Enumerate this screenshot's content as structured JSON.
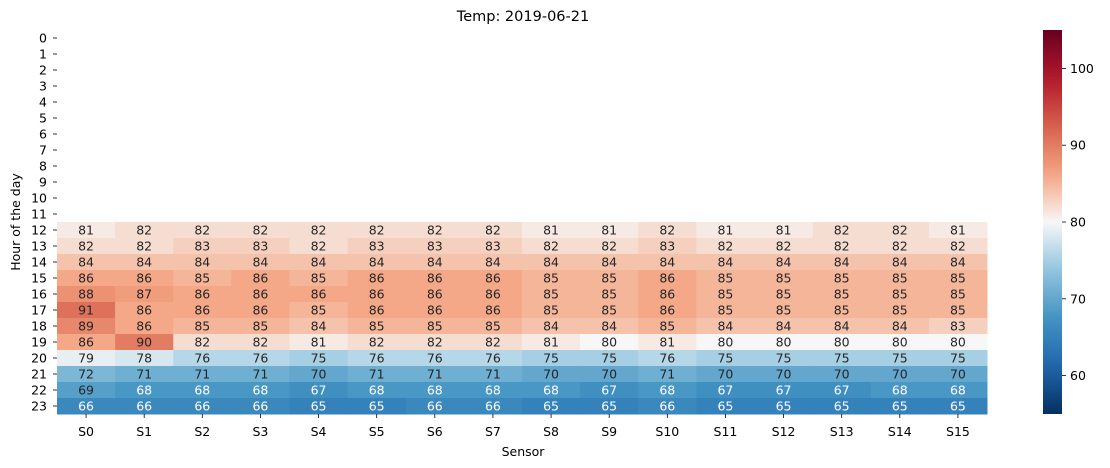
{
  "chart_data": {
    "type": "heatmap",
    "title": "Temp: 2019-06-21",
    "xlabel": "Sensor",
    "ylabel": "Hour of the day",
    "x_categories": [
      "S0",
      "S1",
      "S2",
      "S3",
      "S4",
      "S5",
      "S6",
      "S7",
      "S8",
      "S9",
      "S10",
      "S11",
      "S12",
      "S13",
      "S14",
      "S15"
    ],
    "y_categories": [
      "0",
      "1",
      "2",
      "3",
      "4",
      "5",
      "6",
      "7",
      "8",
      "9",
      "10",
      "11",
      "12",
      "13",
      "14",
      "15",
      "16",
      "17",
      "18",
      "19",
      "20",
      "21",
      "22",
      "23"
    ],
    "values": [
      [
        null,
        null,
        null,
        null,
        null,
        null,
        null,
        null,
        null,
        null,
        null,
        null,
        null,
        null,
        null,
        null
      ],
      [
        null,
        null,
        null,
        null,
        null,
        null,
        null,
        null,
        null,
        null,
        null,
        null,
        null,
        null,
        null,
        null
      ],
      [
        null,
        null,
        null,
        null,
        null,
        null,
        null,
        null,
        null,
        null,
        null,
        null,
        null,
        null,
        null,
        null
      ],
      [
        null,
        null,
        null,
        null,
        null,
        null,
        null,
        null,
        null,
        null,
        null,
        null,
        null,
        null,
        null,
        null
      ],
      [
        null,
        null,
        null,
        null,
        null,
        null,
        null,
        null,
        null,
        null,
        null,
        null,
        null,
        null,
        null,
        null
      ],
      [
        null,
        null,
        null,
        null,
        null,
        null,
        null,
        null,
        null,
        null,
        null,
        null,
        null,
        null,
        null,
        null
      ],
      [
        null,
        null,
        null,
        null,
        null,
        null,
        null,
        null,
        null,
        null,
        null,
        null,
        null,
        null,
        null,
        null
      ],
      [
        null,
        null,
        null,
        null,
        null,
        null,
        null,
        null,
        null,
        null,
        null,
        null,
        null,
        null,
        null,
        null
      ],
      [
        null,
        null,
        null,
        null,
        null,
        null,
        null,
        null,
        null,
        null,
        null,
        null,
        null,
        null,
        null,
        null
      ],
      [
        null,
        null,
        null,
        null,
        null,
        null,
        null,
        null,
        null,
        null,
        null,
        null,
        null,
        null,
        null,
        null
      ],
      [
        null,
        null,
        null,
        null,
        null,
        null,
        null,
        null,
        null,
        null,
        null,
        null,
        null,
        null,
        null,
        null
      ],
      [
        null,
        null,
        null,
        null,
        null,
        null,
        null,
        null,
        null,
        null,
        null,
        null,
        null,
        null,
        null,
        null
      ],
      [
        81,
        82,
        82,
        82,
        82,
        82,
        82,
        82,
        81,
        81,
        82,
        81,
        81,
        82,
        82,
        81
      ],
      [
        82,
        82,
        83,
        83,
        82,
        83,
        83,
        83,
        82,
        82,
        83,
        82,
        82,
        82,
        82,
        82
      ],
      [
        84,
        84,
        84,
        84,
        84,
        84,
        84,
        84,
        84,
        84,
        84,
        84,
        84,
        84,
        84,
        84
      ],
      [
        86,
        86,
        85,
        86,
        85,
        86,
        86,
        86,
        85,
        85,
        86,
        85,
        85,
        85,
        85,
        85
      ],
      [
        88,
        87,
        86,
        86,
        86,
        86,
        86,
        86,
        85,
        85,
        86,
        85,
        85,
        85,
        85,
        85
      ],
      [
        91,
        86,
        86,
        86,
        85,
        86,
        86,
        86,
        85,
        85,
        86,
        85,
        85,
        85,
        85,
        85
      ],
      [
        89,
        86,
        85,
        85,
        84,
        85,
        85,
        85,
        84,
        84,
        85,
        84,
        84,
        84,
        84,
        83
      ],
      [
        86,
        90,
        82,
        82,
        81,
        82,
        82,
        82,
        81,
        80,
        81,
        80,
        80,
        80,
        80,
        80
      ],
      [
        79,
        78,
        76,
        76,
        75,
        76,
        76,
        76,
        75,
        75,
        76,
        75,
        75,
        75,
        75,
        75
      ],
      [
        72,
        71,
        71,
        71,
        70,
        71,
        71,
        71,
        70,
        70,
        71,
        70,
        70,
        70,
        70,
        70
      ],
      [
        69,
        68,
        68,
        68,
        67,
        68,
        68,
        68,
        68,
        67,
        68,
        67,
        67,
        67,
        68,
        68
      ],
      [
        66,
        66,
        66,
        66,
        65,
        65,
        66,
        66,
        65,
        65,
        66,
        65,
        65,
        65,
        65,
        65
      ]
    ],
    "colormap": "RdBu_r",
    "vmin": 55,
    "vmax": 105,
    "colorbar_ticks": [
      60,
      70,
      80,
      90,
      100
    ],
    "annotations": true
  }
}
